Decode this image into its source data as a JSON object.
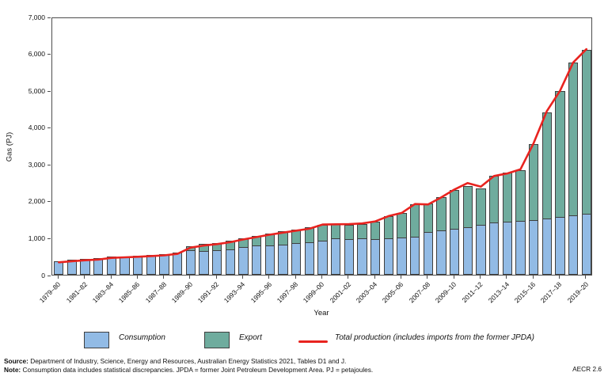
{
  "figure_tag": "AECR 2.6",
  "footer": {
    "source_label": "Source:",
    "source_text": " Department of Industry, Science, Energy and Resources, Australian Energy Statistics 2021, Tables D1 and J.",
    "note_label": "Note:",
    "note_text": " Consumption data includes statistical discrepancies. JPDA = former Joint Petroleum Development Area.  PJ = petajoules."
  },
  "legend": {
    "consumption_label": "Consumption",
    "export_label": "Export",
    "line_label": "Total production (includes imports from the former JPDA)"
  },
  "colors": {
    "consumption": "#92bbe5",
    "export": "#6fac9e",
    "production_line": "#e8231f",
    "bar_border": "#3f3f3f",
    "axis": "#4d4d4d"
  },
  "chart_data": {
    "type": "bar",
    "stacked": true,
    "title": "",
    "xlabel": "Year",
    "ylabel": "Gas (PJ)",
    "ylim": [
      0,
      7000
    ],
    "ytick_step": 1000,
    "ytick_labels": [
      "0",
      "1,000",
      "2,000",
      "3,000",
      "4,000",
      "5,000",
      "6,000",
      "7,000"
    ],
    "xtick_every": 2,
    "grid": false,
    "legend_position": "bottom",
    "categories": [
      "1979–80",
      "1980–81",
      "1981–82",
      "1982–83",
      "1983–84",
      "1984–85",
      "1985–86",
      "1986–87",
      "1987–88",
      "1988–89",
      "1989–90",
      "1990–91",
      "1991–92",
      "1992–93",
      "1993–94",
      "1994–95",
      "1995–96",
      "1996–97",
      "1997–98",
      "1998–99",
      "1999–00",
      "2000–01",
      "2001–02",
      "2002–03",
      "2003–04",
      "2004–05",
      "2005–06",
      "2006–07",
      "2007–08",
      "2008–09",
      "2009–10",
      "2010–11",
      "2011–12",
      "2012–13",
      "2013–14",
      "2014–15",
      "2015–16",
      "2016–17",
      "2017–18",
      "2018–19",
      "2019–20"
    ],
    "series": [
      {
        "name": "Consumption",
        "type": "bar",
        "values": [
          370,
          400,
          425,
          445,
          490,
          505,
          520,
          540,
          560,
          600,
          660,
          645,
          665,
          695,
          745,
          785,
          805,
          825,
          860,
          885,
          935,
          990,
          970,
          990,
          970,
          990,
          1020,
          1040,
          1150,
          1210,
          1245,
          1290,
          1345,
          1410,
          1440,
          1470,
          1490,
          1520,
          1565,
          1615,
          1650
        ]
      },
      {
        "name": "Export",
        "type": "bar",
        "values": [
          0,
          0,
          0,
          0,
          0,
          0,
          0,
          0,
          0,
          0,
          110,
          185,
          205,
          220,
          245,
          270,
          315,
          350,
          370,
          395,
          415,
          375,
          390,
          395,
          470,
          595,
          655,
          870,
          785,
          905,
          1060,
          1115,
          1000,
          1285,
          1320,
          1375,
          2050,
          2890,
          3420,
          4145,
          4450
        ]
      },
      {
        "name": "Total production (includes imports from the former JPDA)",
        "type": "line",
        "values": [
          380,
          410,
          435,
          455,
          500,
          515,
          530,
          550,
          570,
          610,
          780,
          835,
          875,
          925,
          1000,
          1065,
          1130,
          1185,
          1240,
          1290,
          1405,
          1410,
          1415,
          1435,
          1490,
          1635,
          1720,
          1960,
          1950,
          2140,
          2355,
          2530,
          2430,
          2720,
          2790,
          2900,
          3610,
          4480,
          5030,
          5800,
          6160
        ]
      }
    ]
  }
}
